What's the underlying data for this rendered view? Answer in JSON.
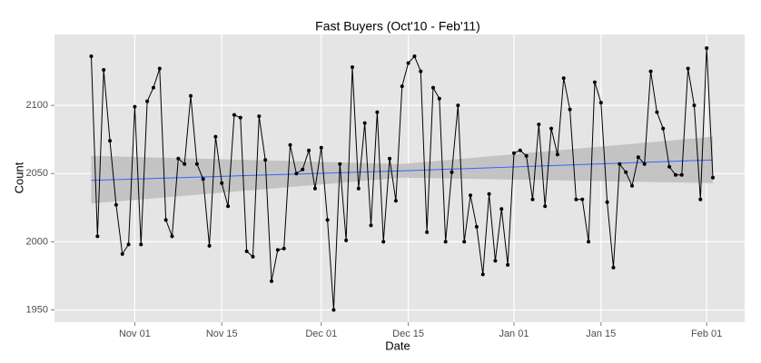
{
  "chart_data": {
    "type": "line",
    "title": "Fast Buyers (Oct'10 - Feb'11)",
    "x_label": "Date",
    "y_label": "Count",
    "x": [
      "Oct 25",
      "Oct 26",
      "Oct 27",
      "Oct 28",
      "Oct 29",
      "Oct 30",
      "Oct 31",
      "Nov 01",
      "Nov 02",
      "Nov 03",
      "Nov 04",
      "Nov 05",
      "Nov 06",
      "Nov 07",
      "Nov 08",
      "Nov 09",
      "Nov 10",
      "Nov 11",
      "Nov 12",
      "Nov 13",
      "Nov 14",
      "Nov 15",
      "Nov 16",
      "Nov 17",
      "Nov 18",
      "Nov 19",
      "Nov 20",
      "Nov 21",
      "Nov 22",
      "Nov 23",
      "Nov 24",
      "Nov 25",
      "Nov 26",
      "Nov 27",
      "Nov 28",
      "Nov 29",
      "Nov 30",
      "Dec 01",
      "Dec 02",
      "Dec 03",
      "Dec 04",
      "Dec 05",
      "Dec 06",
      "Dec 07",
      "Dec 08",
      "Dec 09",
      "Dec 10",
      "Dec 11",
      "Dec 12",
      "Dec 13",
      "Dec 14",
      "Dec 15",
      "Dec 16",
      "Dec 17",
      "Dec 18",
      "Dec 19",
      "Dec 20",
      "Dec 21",
      "Dec 22",
      "Dec 23",
      "Dec 24",
      "Dec 25",
      "Dec 26",
      "Dec 27",
      "Dec 28",
      "Dec 29",
      "Dec 30",
      "Dec 31",
      "Jan 01",
      "Jan 02",
      "Jan 03",
      "Jan 04",
      "Jan 05",
      "Jan 06",
      "Jan 07",
      "Jan 08",
      "Jan 09",
      "Jan 10",
      "Jan 11",
      "Jan 12",
      "Jan 13",
      "Jan 14",
      "Jan 15",
      "Jan 16",
      "Jan 17",
      "Jan 18",
      "Jan 19",
      "Jan 20",
      "Jan 21",
      "Jan 22",
      "Jan 23",
      "Jan 24",
      "Jan 25",
      "Jan 26",
      "Jan 27",
      "Jan 28",
      "Jan 29",
      "Jan 30",
      "Jan 31",
      "Feb 01",
      "Feb 02"
    ],
    "series": [
      {
        "name": "Count",
        "color": "#000000",
        "values": [
          2136,
          2004,
          2126,
          2074,
          2027,
          1991,
          1998,
          2099,
          1998,
          2103,
          2113,
          2127,
          2016,
          2004,
          2061,
          2057,
          2107,
          2057,
          2046,
          1997,
          2077,
          2043,
          2026,
          2093,
          2091,
          1993,
          1989,
          2092,
          2060,
          1971,
          1994,
          1995,
          2071,
          2050,
          2053,
          2067,
          2039,
          2069,
          2016,
          1950,
          2057,
          2001,
          2128,
          2039,
          2087,
          2012,
          2095,
          2000,
          2061,
          2030,
          2114,
          2131,
          2136,
          2125,
          2007,
          2113,
          2105,
          2000,
          2051,
          2100,
          2000,
          2034,
          2011,
          1976,
          2035,
          1986,
          2024,
          1983,
          2065,
          2067,
          2063,
          2031,
          2086,
          2026,
          2083,
          2064,
          2120,
          2097,
          2031,
          2031,
          2000,
          2117,
          2102,
          2029,
          1981,
          2057,
          2051,
          2041,
          2062,
          2057,
          2125,
          2095,
          2083,
          2055,
          2049,
          2049,
          2127,
          2100,
          2031,
          2142,
          2047
        ]
      }
    ],
    "trend": {
      "color": "#3366ff",
      "band_color": "#bdbdbd",
      "values": [
        2045,
        2052,
        2060
      ],
      "lower": [
        2028,
        2047,
        2043
      ],
      "upper": [
        2063,
        2057,
        2077
      ]
    },
    "ylim": [
      1941,
      2152
    ],
    "yticks": [
      1950,
      2000,
      2050,
      2100
    ],
    "xticks": [
      "Nov 01",
      "Nov 15",
      "Dec 01",
      "Dec 15",
      "Jan 01",
      "Jan 15",
      "Feb 01"
    ],
    "grid": true
  }
}
